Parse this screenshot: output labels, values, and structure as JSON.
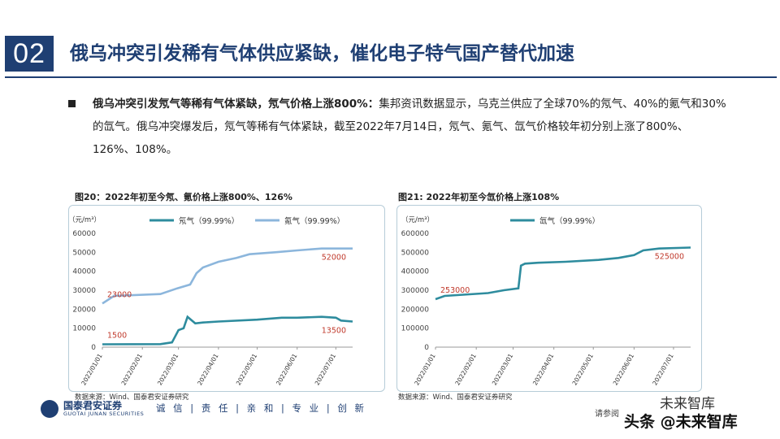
{
  "section_number": "02",
  "section_title": "俄乌冲突引发稀有气体供应紧缺，催化电子特气国产替代加速",
  "body": {
    "lead": "俄乌冲突引发氖气等稀有气体紧缺，氖气价格上涨800%：",
    "text": "集邦资讯数据显示，乌克兰供应了全球70%的氖气、40%的氪气和30%的氙气。俄乌冲突爆发后，氖气等稀有气体紧缺，截至2022年7月14日，氖气、氪气、氙气价格较年初分别上涨了800%、126%、108%。"
  },
  "figures": [
    {
      "title": "图20：2022年初至今氖、氪价格上涨800%、126%",
      "source": "数据来源：Wind、国泰君安证券研究"
    },
    {
      "title": "图21: 2022年初至今氙价格上涨108%",
      "source": "数据来源：Wind、国泰君安证券研究"
    }
  ],
  "chart_data": [
    {
      "type": "line",
      "ylabel": "（元/m³）",
      "ylim": [
        0,
        60000
      ],
      "yticks": [
        "0",
        "10000",
        "20000",
        "30000",
        "40000",
        "50000",
        "60000"
      ],
      "xticks": [
        "2022/01/01",
        "2022/02/01",
        "2022/03/01",
        "2022/04/01",
        "2022/05/01",
        "2022/06/01",
        "2022/07/01"
      ],
      "grid": false,
      "legend": "top",
      "series": [
        {
          "name": "氖气（99.99%）",
          "color": "#2e8c9e",
          "points": [
            [
              "2022/01/01",
              1500
            ],
            [
              "2022/02/15",
              1600
            ],
            [
              "2022/02/24",
              2500
            ],
            [
              "2022/03/01",
              9000
            ],
            [
              "2022/03/05",
              10000
            ],
            [
              "2022/03/08",
              16000
            ],
            [
              "2022/03/14",
              12500
            ],
            [
              "2022/03/20",
              13000
            ],
            [
              "2022/04/01",
              13500
            ],
            [
              "2022/05/01",
              14500
            ],
            [
              "2022/05/20",
              15500
            ],
            [
              "2022/06/01",
              15500
            ],
            [
              "2022/06/20",
              16000
            ],
            [
              "2022/07/01",
              15500
            ],
            [
              "2022/07/05",
              14000
            ],
            [
              "2022/07/14",
              13500
            ]
          ],
          "labels": [
            {
              "x": "2022/01/01",
              "y": 1500,
              "text": "1500"
            },
            {
              "x": "2022/07/14",
              "y": 13500,
              "text": "13500"
            }
          ]
        },
        {
          "name": "氪气（99.99%）",
          "color": "#8cb6dc",
          "points": [
            [
              "2022/01/01",
              23000
            ],
            [
              "2022/01/10",
              27000
            ],
            [
              "2022/02/15",
              28000
            ],
            [
              "2022/02/28",
              31000
            ],
            [
              "2022/03/10",
              33000
            ],
            [
              "2022/03/15",
              39000
            ],
            [
              "2022/03/20",
              42000
            ],
            [
              "2022/04/01",
              45000
            ],
            [
              "2022/04/15",
              47000
            ],
            [
              "2022/04/25",
              49000
            ],
            [
              "2022/05/15",
              50000
            ],
            [
              "2022/06/01",
              51000
            ],
            [
              "2022/06/20",
              52000
            ],
            [
              "2022/07/14",
              52000
            ]
          ],
          "labels": [
            {
              "x": "2022/01/01",
              "y": 23000,
              "text": "23000"
            },
            {
              "x": "2022/07/14",
              "y": 52000,
              "text": "52000"
            }
          ]
        }
      ]
    },
    {
      "type": "line",
      "ylabel": "（元/m³）",
      "ylim": [
        0,
        600000
      ],
      "yticks": [
        "0",
        "100000",
        "200000",
        "300000",
        "400000",
        "500000",
        "600000"
      ],
      "xticks": [
        "2022/01/01",
        "2022/02/01",
        "2022/03/01",
        "2022/04/01",
        "2022/05/01",
        "2022/06/01",
        "2022/07/01"
      ],
      "grid": false,
      "legend": "top",
      "series": [
        {
          "name": "氙气（99.99%）",
          "color": "#2e8c9e",
          "points": [
            [
              "2022/01/01",
              253000
            ],
            [
              "2022/01/08",
              270000
            ],
            [
              "2022/02/10",
              285000
            ],
            [
              "2022/02/22",
              300000
            ],
            [
              "2022/03/05",
              310000
            ],
            [
              "2022/03/07",
              430000
            ],
            [
              "2022/03/10",
              440000
            ],
            [
              "2022/03/20",
              445000
            ],
            [
              "2022/04/10",
              450000
            ],
            [
              "2022/05/05",
              460000
            ],
            [
              "2022/05/20",
              470000
            ],
            [
              "2022/06/01",
              485000
            ],
            [
              "2022/06/08",
              510000
            ],
            [
              "2022/06/20",
              520000
            ],
            [
              "2022/07/14",
              525000
            ]
          ],
          "labels": [
            {
              "x": "2022/01/01",
              "y": 253000,
              "text": "253000"
            },
            {
              "x": "2022/07/14",
              "y": 525000,
              "text": "525000"
            }
          ]
        }
      ]
    }
  ],
  "footer": {
    "logo": "国泰君安证券",
    "logo_en": "GUOTAI JUNAN SECURITIES",
    "slogan": "诚 信 | 责 任 | 亲 和 | 专 业 | 创 新",
    "note": "请参阅",
    "wm_brand": "头条 @未来智库",
    "wm_brand2": "未来智库"
  }
}
